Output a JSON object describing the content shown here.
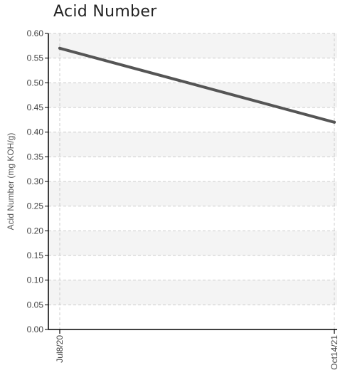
{
  "chart_data": {
    "type": "line",
    "title": "Acid Number",
    "ylabel": "Acid Number (mg KOH/g)",
    "xlabel": "",
    "x": [
      "Jul8/20",
      "Oct14/21"
    ],
    "series": [
      {
        "values": [
          0.57,
          0.42
        ],
        "color": "#555555"
      }
    ],
    "ylim": [
      0,
      0.6
    ],
    "yticks": [
      "0.00",
      "0.05",
      "0.10",
      "0.15",
      "0.20",
      "0.25",
      "0.30",
      "0.35",
      "0.40",
      "0.45",
      "0.50",
      "0.55",
      "0.60"
    ],
    "grid": true,
    "band_color": "#f4f4f4",
    "grid_color": "#cccccc"
  }
}
